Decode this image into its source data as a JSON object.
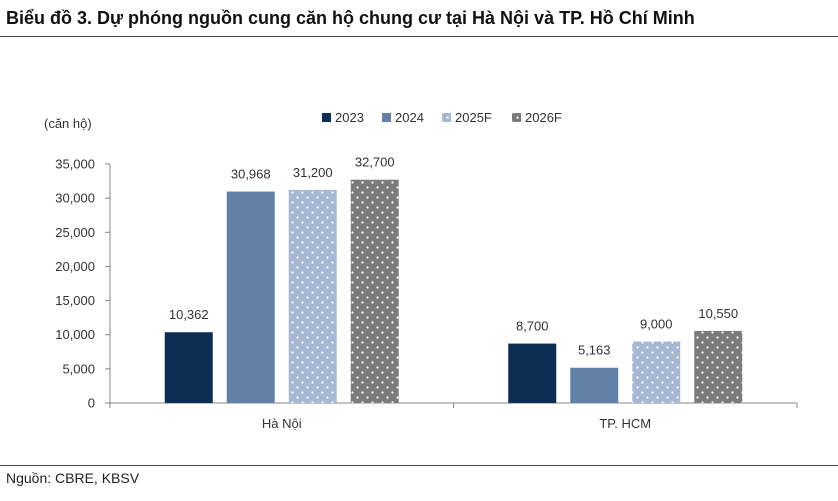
{
  "title": "Biểu đồ 3. Dự phóng nguồn cung căn hộ chung cư tại Hà Nội và TP. Hồ Chí Minh",
  "source": "Nguồn: CBRE, KBSV",
  "colors": {
    "2023": "#0e2d52",
    "2024": "#6381a7",
    "2025F": "#a8b8d4",
    "2026F": "#7b7b7b"
  },
  "chart_data": {
    "type": "bar",
    "title": "Biểu đồ 3. Dự phóng nguồn cung căn hộ chung cư tại Hà Nội và TP. Hồ Chí Minh",
    "ylabel": "(căn hộ)",
    "xlabel": "",
    "ylim": [
      0,
      35000
    ],
    "yticks": [
      0,
      5000,
      10000,
      15000,
      20000,
      25000,
      30000,
      35000
    ],
    "ytick_labels": [
      "0",
      "5,000",
      "10,000",
      "15,000",
      "20,000",
      "25,000",
      "30,000",
      "35,000"
    ],
    "categories": [
      "Hà Nội",
      "TP. HCM"
    ],
    "legend_position": "top",
    "grid": false,
    "series": [
      {
        "name": "2023",
        "values": [
          10362,
          8700
        ],
        "labels": [
          "10,362",
          "8,700"
        ],
        "pattern": "solid"
      },
      {
        "name": "2024",
        "values": [
          30968,
          5163
        ],
        "labels": [
          "30,968",
          "5,163"
        ],
        "pattern": "solid"
      },
      {
        "name": "2025F",
        "values": [
          31200,
          9000
        ],
        "labels": [
          "31,200",
          "9,000"
        ],
        "pattern": "dots"
      },
      {
        "name": "2026F",
        "values": [
          32700,
          10550
        ],
        "labels": [
          "32,700",
          "10,550"
        ],
        "pattern": "dots"
      }
    ]
  }
}
